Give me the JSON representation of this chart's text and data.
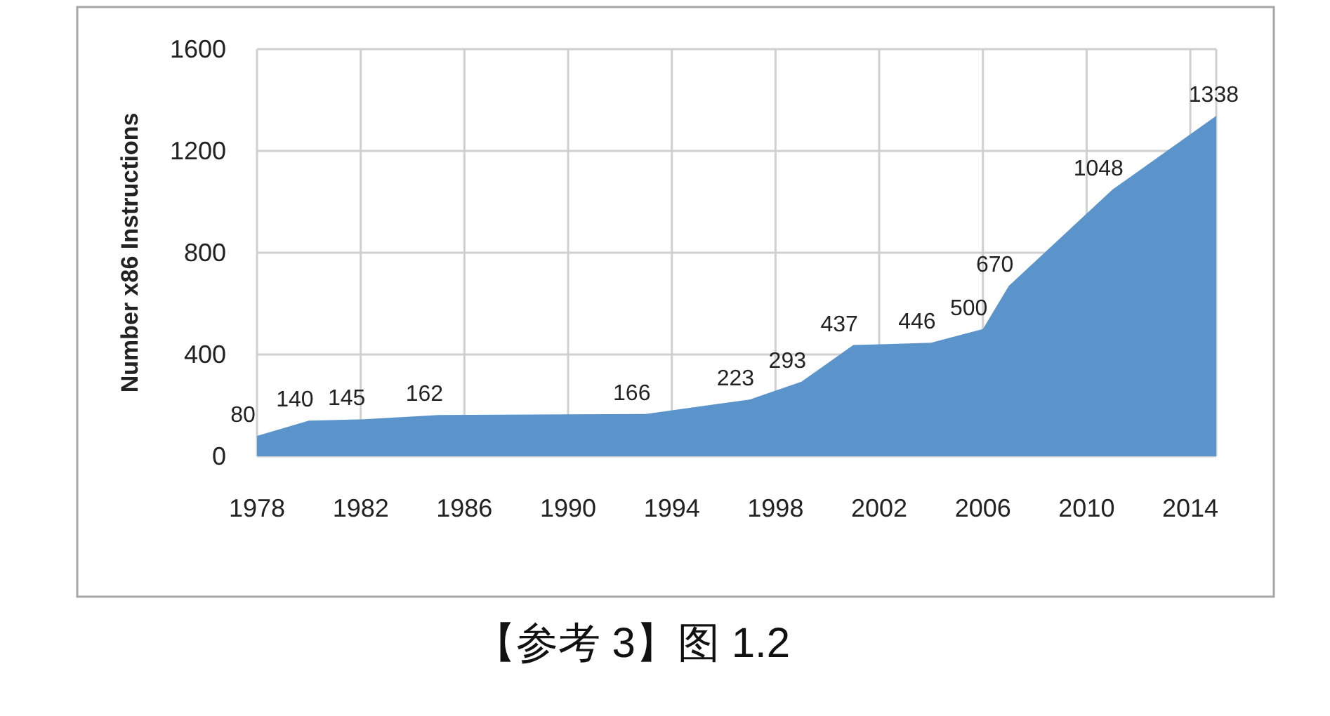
{
  "chart_data": {
    "type": "area",
    "ylabel": "Number x86 Instructions",
    "x": [
      1978,
      1980,
      1982,
      1985,
      1993,
      1997,
      1999,
      2001,
      2004,
      2006,
      2007,
      2011,
      2015
    ],
    "values": [
      80,
      140,
      145,
      162,
      166,
      223,
      293,
      437,
      446,
      500,
      670,
      1048,
      1338
    ],
    "color": "#5b93cb",
    "xlim": [
      1978,
      2015
    ],
    "ylim": [
      0,
      1600
    ],
    "xticks": [
      1978,
      1982,
      1986,
      1990,
      1994,
      1998,
      2002,
      2006,
      2010,
      2014
    ],
    "yticks": [
      0,
      400,
      800,
      1200,
      1600
    ],
    "grid": true,
    "data_labels": true,
    "annotations": [
      "【参考 3】图 1.2"
    ]
  }
}
